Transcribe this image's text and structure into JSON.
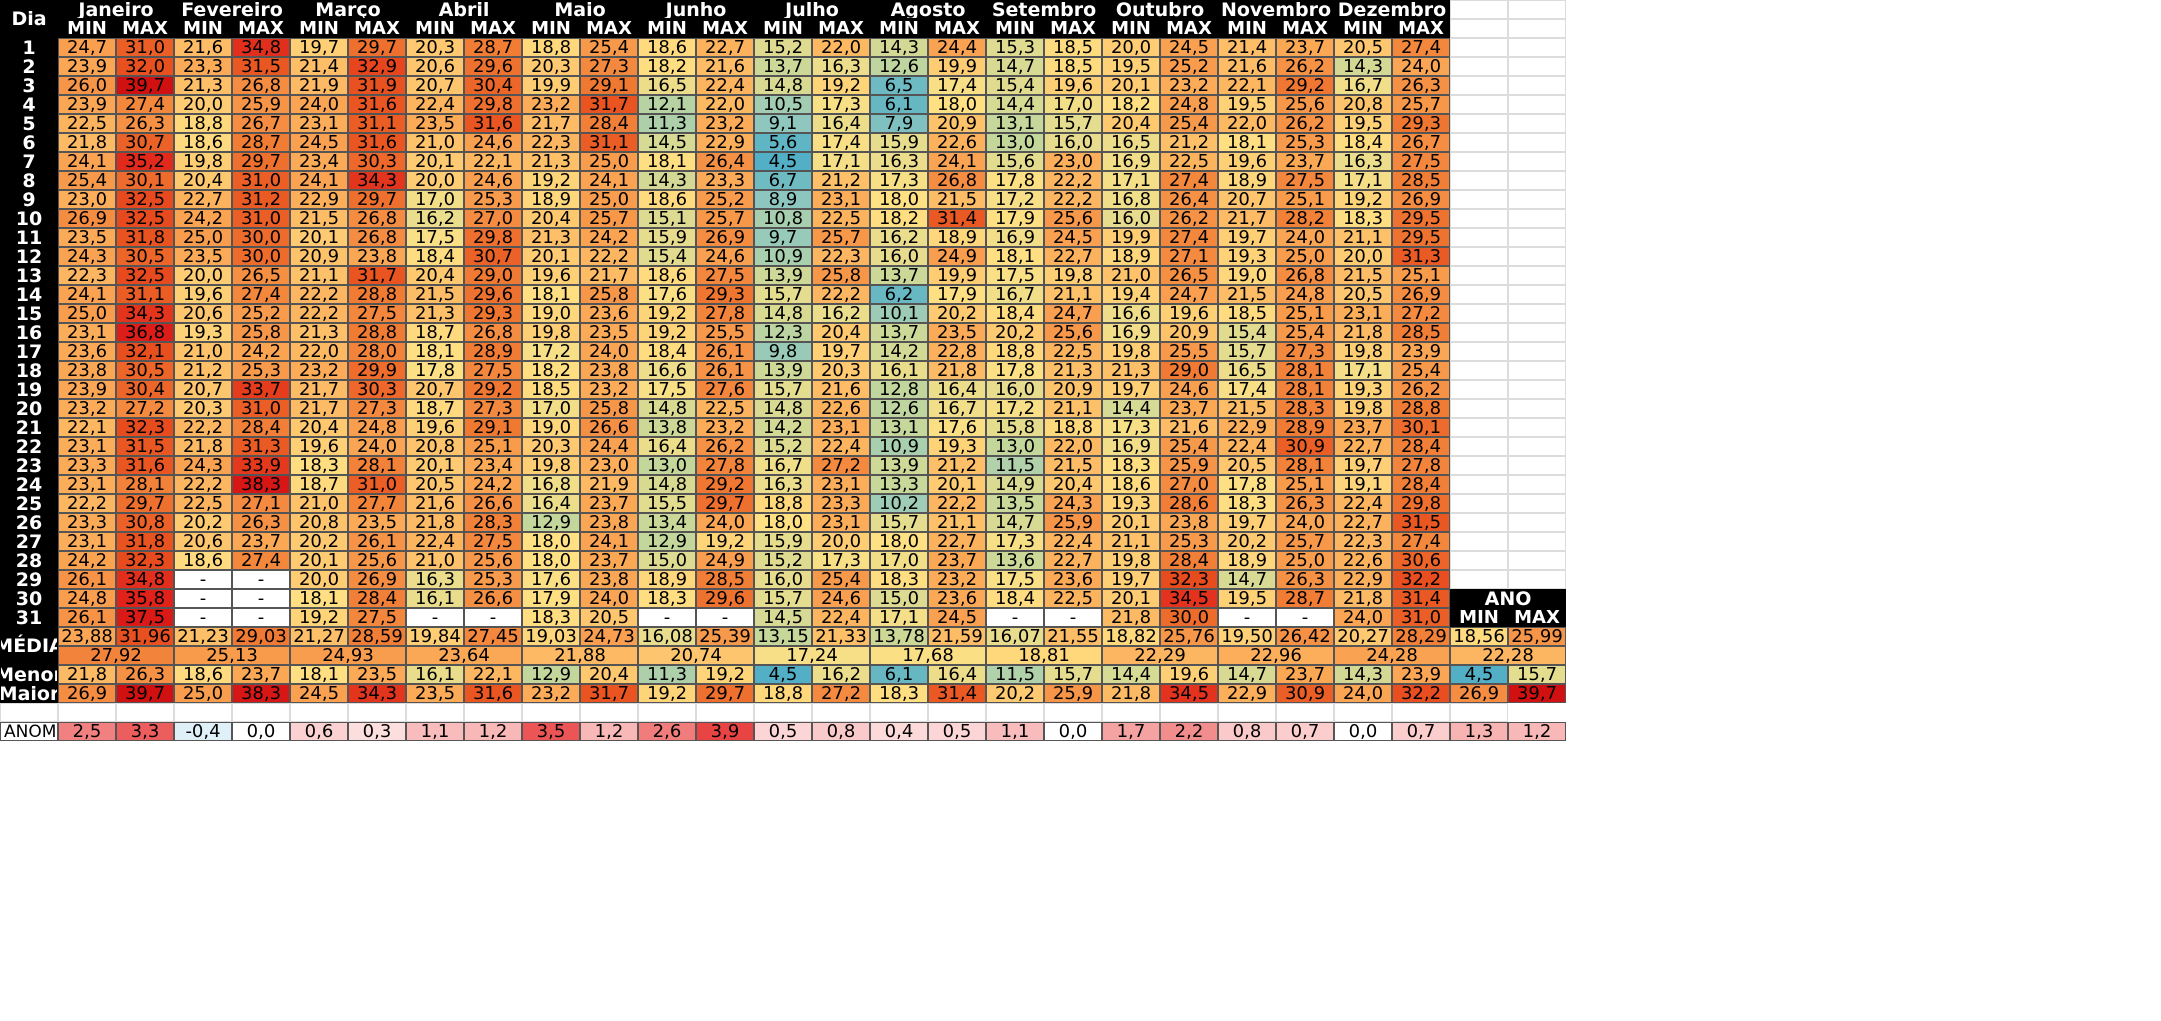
{
  "header": {
    "dia_label": "Dia",
    "min_label": "MIN",
    "max_label": "MAX"
  },
  "months": [
    "Janeiro",
    "Fevereiro",
    "Março",
    "Abril",
    "Maio",
    "Junho",
    "Julho",
    "Agosto",
    "Setembro",
    "Outubro",
    "Novembro",
    "Dezembro"
  ],
  "days": [
    [
      "24,7",
      "31,0",
      "21,6",
      "34,8",
      "19,7",
      "29,7",
      "20,3",
      "28,7",
      "18,8",
      "25,4",
      "18,6",
      "22,7",
      "15,2",
      "22,0",
      "14,3",
      "24,4",
      "15,3",
      "18,5",
      "20,0",
      "24,5",
      "21,4",
      "23,7",
      "20,5",
      "27,4"
    ],
    [
      "23,9",
      "32,0",
      "23,3",
      "31,5",
      "21,4",
      "32,9",
      "20,6",
      "29,6",
      "20,3",
      "27,3",
      "18,2",
      "21,6",
      "13,7",
      "16,3",
      "12,6",
      "19,9",
      "14,7",
      "18,5",
      "19,5",
      "25,2",
      "21,6",
      "26,2",
      "14,3",
      "24,0"
    ],
    [
      "26,0",
      "39,7",
      "21,3",
      "26,8",
      "21,9",
      "31,9",
      "20,7",
      "30,4",
      "19,9",
      "29,1",
      "16,5",
      "22,4",
      "14,8",
      "19,2",
      "6,5",
      "17,4",
      "15,4",
      "19,6",
      "20,1",
      "23,2",
      "22,1",
      "29,2",
      "16,7",
      "26,3"
    ],
    [
      "23,9",
      "27,4",
      "20,0",
      "25,9",
      "24,0",
      "31,6",
      "22,4",
      "29,8",
      "23,2",
      "31,7",
      "12,1",
      "22,0",
      "10,5",
      "17,3",
      "6,1",
      "18,0",
      "14,4",
      "17,0",
      "18,2",
      "24,8",
      "19,5",
      "25,6",
      "20,8",
      "25,7"
    ],
    [
      "22,5",
      "26,3",
      "18,8",
      "26,7",
      "23,1",
      "31,1",
      "23,5",
      "31,6",
      "21,7",
      "28,4",
      "11,3",
      "23,2",
      "9,1",
      "16,4",
      "7,9",
      "20,9",
      "13,1",
      "15,7",
      "20,4",
      "25,4",
      "22,0",
      "26,2",
      "19,5",
      "29,3"
    ],
    [
      "21,8",
      "30,7",
      "18,6",
      "28,7",
      "24,5",
      "31,6",
      "21,0",
      "24,6",
      "22,3",
      "31,1",
      "14,5",
      "22,9",
      "5,6",
      "17,4",
      "15,9",
      "22,6",
      "13,0",
      "16,0",
      "16,5",
      "21,2",
      "18,1",
      "25,3",
      "18,4",
      "26,7"
    ],
    [
      "24,1",
      "35,2",
      "19,8",
      "29,7",
      "23,4",
      "30,3",
      "20,1",
      "22,1",
      "21,3",
      "25,0",
      "18,1",
      "26,4",
      "4,5",
      "17,1",
      "16,3",
      "24,1",
      "15,6",
      "23,0",
      "16,9",
      "22,5",
      "19,6",
      "23,7",
      "16,3",
      "27,5"
    ],
    [
      "25,4",
      "30,1",
      "20,4",
      "31,0",
      "24,1",
      "34,3",
      "20,0",
      "24,6",
      "19,2",
      "24,1",
      "14,3",
      "23,3",
      "6,7",
      "21,2",
      "17,3",
      "26,8",
      "17,8",
      "22,2",
      "17,1",
      "27,4",
      "18,9",
      "27,5",
      "17,1",
      "28,5"
    ],
    [
      "23,0",
      "32,5",
      "22,7",
      "31,2",
      "22,9",
      "29,7",
      "17,0",
      "25,3",
      "18,9",
      "25,0",
      "18,6",
      "25,2",
      "8,9",
      "23,1",
      "18,0",
      "21,5",
      "17,2",
      "22,2",
      "16,8",
      "26,4",
      "20,7",
      "25,1",
      "19,2",
      "26,9"
    ],
    [
      "26,9",
      "32,5",
      "24,2",
      "31,0",
      "21,5",
      "26,8",
      "16,2",
      "27,0",
      "20,4",
      "25,7",
      "15,1",
      "25,7",
      "10,8",
      "22,5",
      "18,2",
      "31,4",
      "17,9",
      "25,6",
      "16,0",
      "26,2",
      "21,7",
      "28,2",
      "18,3",
      "29,5"
    ],
    [
      "23,5",
      "31,8",
      "25,0",
      "30,0",
      "20,1",
      "26,8",
      "17,5",
      "29,8",
      "21,3",
      "24,2",
      "15,9",
      "26,9",
      "9,7",
      "25,7",
      "16,2",
      "18,9",
      "16,9",
      "24,5",
      "19,9",
      "27,4",
      "19,7",
      "24,0",
      "21,1",
      "29,5"
    ],
    [
      "24,3",
      "30,5",
      "23,5",
      "30,0",
      "20,9",
      "23,8",
      "18,4",
      "30,7",
      "20,1",
      "22,2",
      "15,4",
      "24,6",
      "10,9",
      "22,3",
      "16,0",
      "24,9",
      "18,1",
      "22,7",
      "18,9",
      "27,1",
      "19,3",
      "25,0",
      "20,0",
      "31,3"
    ],
    [
      "22,3",
      "32,5",
      "20,0",
      "26,5",
      "21,1",
      "31,7",
      "20,4",
      "29,0",
      "19,6",
      "21,7",
      "18,6",
      "27,5",
      "13,9",
      "25,8",
      "13,7",
      "19,9",
      "17,5",
      "19,8",
      "21,0",
      "26,5",
      "19,0",
      "26,8",
      "21,5",
      "25,1"
    ],
    [
      "24,1",
      "31,1",
      "19,6",
      "27,4",
      "22,2",
      "28,8",
      "21,5",
      "29,6",
      "18,1",
      "25,8",
      "17,6",
      "29,3",
      "15,7",
      "22,2",
      "6,2",
      "17,9",
      "16,7",
      "21,1",
      "19,4",
      "24,7",
      "21,5",
      "24,8",
      "20,5",
      "26,9"
    ],
    [
      "25,0",
      "34,3",
      "20,6",
      "25,2",
      "22,2",
      "27,5",
      "21,3",
      "29,3",
      "19,0",
      "23,6",
      "19,2",
      "27,8",
      "14,8",
      "16,2",
      "10,1",
      "20,2",
      "18,4",
      "24,7",
      "16,6",
      "19,6",
      "18,5",
      "25,1",
      "23,1",
      "27,2"
    ],
    [
      "23,1",
      "36,8",
      "19,3",
      "25,8",
      "21,3",
      "28,8",
      "18,7",
      "26,8",
      "19,8",
      "23,5",
      "19,2",
      "25,5",
      "12,3",
      "20,4",
      "13,7",
      "23,5",
      "20,2",
      "25,6",
      "16,9",
      "20,9",
      "15,4",
      "25,4",
      "21,8",
      "28,5"
    ],
    [
      "23,6",
      "32,1",
      "21,0",
      "24,2",
      "22,0",
      "28,0",
      "18,1",
      "28,9",
      "17,2",
      "24,0",
      "18,4",
      "26,1",
      "9,8",
      "19,7",
      "14,2",
      "22,8",
      "18,8",
      "22,5",
      "19,8",
      "25,5",
      "15,7",
      "27,3",
      "19,8",
      "23,9"
    ],
    [
      "23,8",
      "30,5",
      "21,2",
      "25,3",
      "23,2",
      "29,9",
      "17,8",
      "27,5",
      "18,2",
      "23,8",
      "16,6",
      "26,1",
      "13,9",
      "20,3",
      "16,1",
      "21,8",
      "17,8",
      "21,3",
      "21,3",
      "29,0",
      "16,5",
      "28,1",
      "17,1",
      "25,4"
    ],
    [
      "23,9",
      "30,4",
      "20,7",
      "33,7",
      "21,7",
      "30,3",
      "20,7",
      "29,2",
      "18,5",
      "23,2",
      "17,5",
      "27,6",
      "15,7",
      "21,6",
      "12,8",
      "16,4",
      "16,0",
      "20,9",
      "19,7",
      "24,6",
      "17,4",
      "28,1",
      "19,3",
      "26,2"
    ],
    [
      "23,2",
      "27,2",
      "20,3",
      "31,0",
      "21,7",
      "27,3",
      "18,7",
      "27,3",
      "17,0",
      "25,8",
      "14,8",
      "22,5",
      "14,8",
      "22,6",
      "12,6",
      "16,7",
      "17,2",
      "21,1",
      "14,4",
      "23,7",
      "21,5",
      "28,3",
      "19,8",
      "28,8"
    ],
    [
      "22,1",
      "32,3",
      "22,2",
      "28,4",
      "20,4",
      "24,8",
      "19,6",
      "29,1",
      "19,0",
      "26,6",
      "13,8",
      "23,2",
      "14,2",
      "23,1",
      "13,1",
      "17,6",
      "15,8",
      "18,8",
      "17,3",
      "21,6",
      "22,9",
      "28,9",
      "23,7",
      "30,1"
    ],
    [
      "23,1",
      "31,5",
      "21,8",
      "31,3",
      "19,6",
      "24,0",
      "20,8",
      "25,1",
      "20,3",
      "24,4",
      "16,4",
      "26,2",
      "15,2",
      "22,4",
      "10,9",
      "19,3",
      "13,0",
      "22,0",
      "16,9",
      "25,4",
      "22,4",
      "30,9",
      "22,7",
      "28,4"
    ],
    [
      "23,3",
      "31,6",
      "24,3",
      "33,9",
      "18,3",
      "28,1",
      "20,1",
      "23,4",
      "19,8",
      "23,0",
      "13,0",
      "27,8",
      "16,7",
      "27,2",
      "13,9",
      "21,2",
      "11,5",
      "21,5",
      "18,3",
      "25,9",
      "20,5",
      "28,1",
      "19,7",
      "27,8"
    ],
    [
      "23,1",
      "28,1",
      "22,2",
      "38,3",
      "18,7",
      "31,0",
      "20,5",
      "24,2",
      "16,8",
      "21,9",
      "14,8",
      "29,2",
      "16,3",
      "23,1",
      "13,3",
      "20,1",
      "14,9",
      "20,4",
      "18,6",
      "27,0",
      "17,8",
      "25,1",
      "19,1",
      "28,4"
    ],
    [
      "22,2",
      "29,7",
      "22,5",
      "27,1",
      "21,0",
      "27,7",
      "21,6",
      "26,6",
      "16,4",
      "23,7",
      "15,5",
      "29,7",
      "18,8",
      "23,3",
      "10,2",
      "22,2",
      "13,5",
      "24,3",
      "19,3",
      "28,6",
      "18,3",
      "26,3",
      "22,4",
      "29,8"
    ],
    [
      "23,3",
      "30,8",
      "20,2",
      "26,3",
      "20,8",
      "23,5",
      "21,8",
      "28,3",
      "12,9",
      "23,8",
      "13,4",
      "24,0",
      "18,0",
      "23,1",
      "15,7",
      "21,1",
      "14,7",
      "25,9",
      "20,1",
      "23,8",
      "19,7",
      "24,0",
      "22,7",
      "31,5"
    ],
    [
      "23,1",
      "31,8",
      "20,6",
      "23,7",
      "20,2",
      "26,1",
      "22,4",
      "27,5",
      "18,0",
      "24,1",
      "12,9",
      "19,2",
      "15,9",
      "20,0",
      "18,0",
      "22,7",
      "17,3",
      "22,4",
      "21,1",
      "25,3",
      "20,2",
      "25,7",
      "22,3",
      "27,4"
    ],
    [
      "24,2",
      "32,3",
      "18,6",
      "27,4",
      "20,1",
      "25,6",
      "21,0",
      "25,6",
      "18,0",
      "23,7",
      "15,0",
      "24,9",
      "15,2",
      "17,3",
      "17,0",
      "23,7",
      "13,6",
      "22,7",
      "19,8",
      "28,4",
      "18,9",
      "25,0",
      "22,6",
      "30,6"
    ],
    [
      "26,1",
      "34,8",
      "-",
      "-",
      "20,0",
      "26,9",
      "16,3",
      "25,3",
      "17,6",
      "23,8",
      "18,9",
      "28,5",
      "16,0",
      "25,4",
      "18,3",
      "23,2",
      "17,5",
      "23,6",
      "19,7",
      "32,3",
      "14,7",
      "26,3",
      "22,9",
      "32,2"
    ],
    [
      "24,8",
      "35,8",
      "-",
      "-",
      "18,1",
      "28,4",
      "16,1",
      "26,6",
      "17,9",
      "24,0",
      "18,3",
      "29,6",
      "15,7",
      "24,6",
      "15,0",
      "23,6",
      "18,4",
      "22,5",
      "20,1",
      "34,5",
      "19,5",
      "28,7",
      "21,8",
      "31,4"
    ],
    [
      "26,1",
      "37,5",
      "-",
      "-",
      "19,2",
      "27,5",
      "-",
      "-",
      "18,3",
      "20,5",
      "-",
      "-",
      "14,5",
      "22,4",
      "17,1",
      "24,5",
      "-",
      "-",
      "21,8",
      "30,0",
      "-",
      "-",
      "24,0",
      "31,0"
    ]
  ],
  "labels": {
    "media": "MÉDIA",
    "menor": "Menor",
    "maior": "Maior",
    "anom": "ANOM.",
    "ano": "ANO"
  },
  "media": [
    "23,88",
    "31,96",
    "21,23",
    "29,03",
    "21,27",
    "28,59",
    "19,84",
    "27,45",
    "19,03",
    "24,73",
    "16,08",
    "25,39",
    "13,15",
    "21,33",
    "13,78",
    "21,59",
    "16,07",
    "21,55",
    "18,82",
    "25,76",
    "19,50",
    "26,42",
    "20,27",
    "28,29"
  ],
  "media_avg": [
    "27,92",
    "25,13",
    "24,93",
    "23,64",
    "21,88",
    "20,74",
    "17,24",
    "17,68",
    "18,81",
    "22,29",
    "22,96",
    "24,28"
  ],
  "menor": [
    "21,8",
    "26,3",
    "18,6",
    "23,7",
    "18,1",
    "23,5",
    "16,1",
    "22,1",
    "12,9",
    "20,4",
    "11,3",
    "19,2",
    "4,5",
    "16,2",
    "6,1",
    "16,4",
    "11,5",
    "15,7",
    "14,4",
    "19,6",
    "14,7",
    "23,7",
    "14,3",
    "23,9"
  ],
  "maior": [
    "26,9",
    "39,7",
    "25,0",
    "38,3",
    "24,5",
    "34,3",
    "23,5",
    "31,6",
    "23,2",
    "31,7",
    "19,2",
    "29,7",
    "18,8",
    "27,2",
    "18,3",
    "31,4",
    "20,2",
    "25,9",
    "21,8",
    "34,5",
    "22,9",
    "30,9",
    "24,0",
    "32,2"
  ],
  "anom": [
    "2,5",
    "3,3",
    "-0,4",
    "0,0",
    "0,6",
    "0,3",
    "1,1",
    "1,2",
    "3,5",
    "1,2",
    "2,6",
    "3,9",
    "0,5",
    "0,8",
    "0,4",
    "0,5",
    "1,1",
    "0,0",
    "1,7",
    "2,2",
    "0,8",
    "0,7",
    "0,0",
    "0,7"
  ],
  "ano": {
    "min": "18,56",
    "max": "25,99",
    "avg": "22,28",
    "menor_min": "4,5",
    "menor_max": "15,7",
    "maior_min": "26,9",
    "maior_max": "39,7",
    "anom_min": "1,3",
    "anom_max": "1,2"
  },
  "colors": {
    "header_bg": "#000000",
    "header_fg": "#ffffff",
    "cold": "#4bacc6",
    "cool": "#c4d79b",
    "mild": "#ffe083",
    "warm": "#fcae5a",
    "hot": "#e85021",
    "extreme": "#e0201b"
  }
}
